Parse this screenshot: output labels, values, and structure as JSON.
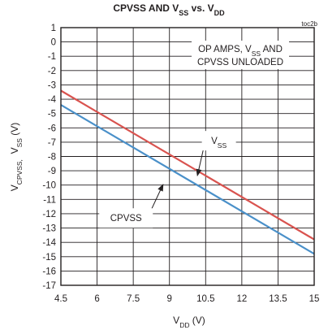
{
  "chart_data": {
    "type": "line",
    "title": "CPVSS AND V_SS vs. V_DD",
    "title_parts": {
      "a": "CPVSS AND V",
      "a_sub": "SS",
      "b": " vs. V",
      "b_sub": "DD"
    },
    "figure_id": "toc2b",
    "xlabel": {
      "main": "V",
      "sub": "DD",
      "rest": " (V)"
    },
    "ylabel": {
      "a": "V",
      "a_sub": "CPVSS,",
      "b": "  V",
      "b_sub": "SS",
      "c": " (V)"
    },
    "xlim": [
      4.5,
      15
    ],
    "ylim": [
      -17,
      1
    ],
    "x_ticks": [
      4.5,
      6,
      7.5,
      9,
      10.5,
      12,
      13.5,
      15
    ],
    "x_tick_labels": [
      "4.5",
      "6",
      "7.5",
      "9",
      "10.5",
      "12",
      "13.5",
      "15"
    ],
    "y_ticks": [
      1,
      0,
      -1,
      -2,
      -3,
      -4,
      -5,
      -6,
      -7,
      -8,
      -9,
      -10,
      -11,
      -12,
      -13,
      -14,
      -15,
      -16,
      -17
    ],
    "y_tick_labels": [
      "1",
      "0",
      "-1",
      "-2",
      "-3",
      "-4",
      "-5",
      "-6",
      "-7",
      "-8",
      "-9",
      "-10",
      "-11",
      "-12",
      "-13",
      "-14",
      "-15",
      "-16",
      "-17"
    ],
    "grid": true,
    "condition_note": {
      "line1": "OP AMPS, V",
      "line1_sub": "SS",
      "line1_rest": " AND",
      "line2": "CPVSS UNLOADED"
    },
    "series": [
      {
        "name": "V_SS",
        "label_main": "V",
        "label_sub": "SS",
        "color": "#d9534f",
        "x": [
          4.5,
          15
        ],
        "y": [
          -3.4,
          -13.8
        ]
      },
      {
        "name": "CPVSS",
        "label_main": "CPVSS",
        "label_sub": "",
        "color": "#4a90c9",
        "x": [
          4.5,
          15
        ],
        "y": [
          -4.4,
          -14.8
        ]
      }
    ],
    "callouts": [
      {
        "series": "V_SS",
        "label_at": [
          11.05,
          -6.9
        ],
        "arrow_to": [
          10.15,
          -9.4
        ]
      },
      {
        "series": "CPVSS",
        "label_at": [
          7.2,
          -12.3
        ],
        "arrow_to": [
          8.75,
          -9.9
        ]
      }
    ]
  }
}
